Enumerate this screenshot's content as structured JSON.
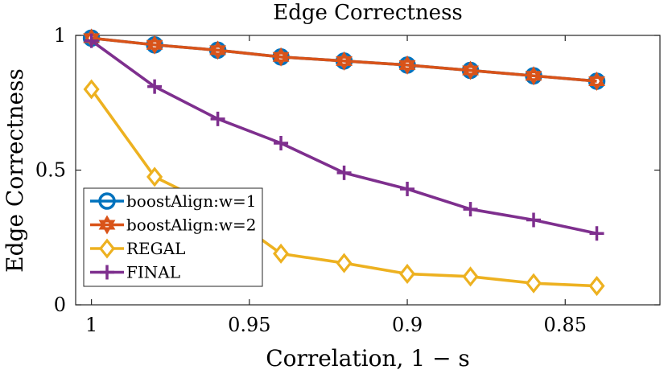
{
  "chart_data": {
    "type": "line",
    "title": "Edge Correctness",
    "xlabel": "Correlation, 1 − s",
    "ylabel": "Edge Correctness",
    "xlim": [
      1.005,
      0.82
    ],
    "ylim": [
      0,
      1
    ],
    "x_reversed": true,
    "x_ticks": [
      1,
      0.95,
      0.9,
      0.85
    ],
    "x_tick_labels": [
      "1",
      "0.95",
      "0.9",
      "0.85"
    ],
    "y_ticks": [
      0,
      0.5,
      1
    ],
    "y_tick_labels": [
      "0",
      "0.5",
      "1"
    ],
    "grid": false,
    "legend_position": "left-middle",
    "x": [
      1,
      0.98,
      0.96,
      0.94,
      0.92,
      0.9,
      0.88,
      0.86,
      0.84
    ],
    "series": [
      {
        "name": "boostAlign:w=1",
        "color": "#0072BD",
        "marker": "circle",
        "values": [
          0.99,
          0.965,
          0.945,
          0.92,
          0.905,
          0.89,
          0.87,
          0.85,
          0.83
        ]
      },
      {
        "name": "boostAlign:w=2",
        "color": "#D95319",
        "marker": "hexagram",
        "values": [
          0.99,
          0.965,
          0.945,
          0.92,
          0.905,
          0.89,
          0.87,
          0.85,
          0.83
        ]
      },
      {
        "name": "REGAL",
        "color": "#EDB120",
        "marker": "diamond",
        "values": [
          0.8,
          0.475,
          0.36,
          0.19,
          0.155,
          0.115,
          0.105,
          0.08,
          0.07
        ]
      },
      {
        "name": "FINAL",
        "color": "#7E2F8E",
        "marker": "plus",
        "values": [
          0.98,
          0.81,
          0.69,
          0.6,
          0.49,
          0.43,
          0.355,
          0.315,
          0.265
        ]
      }
    ]
  }
}
